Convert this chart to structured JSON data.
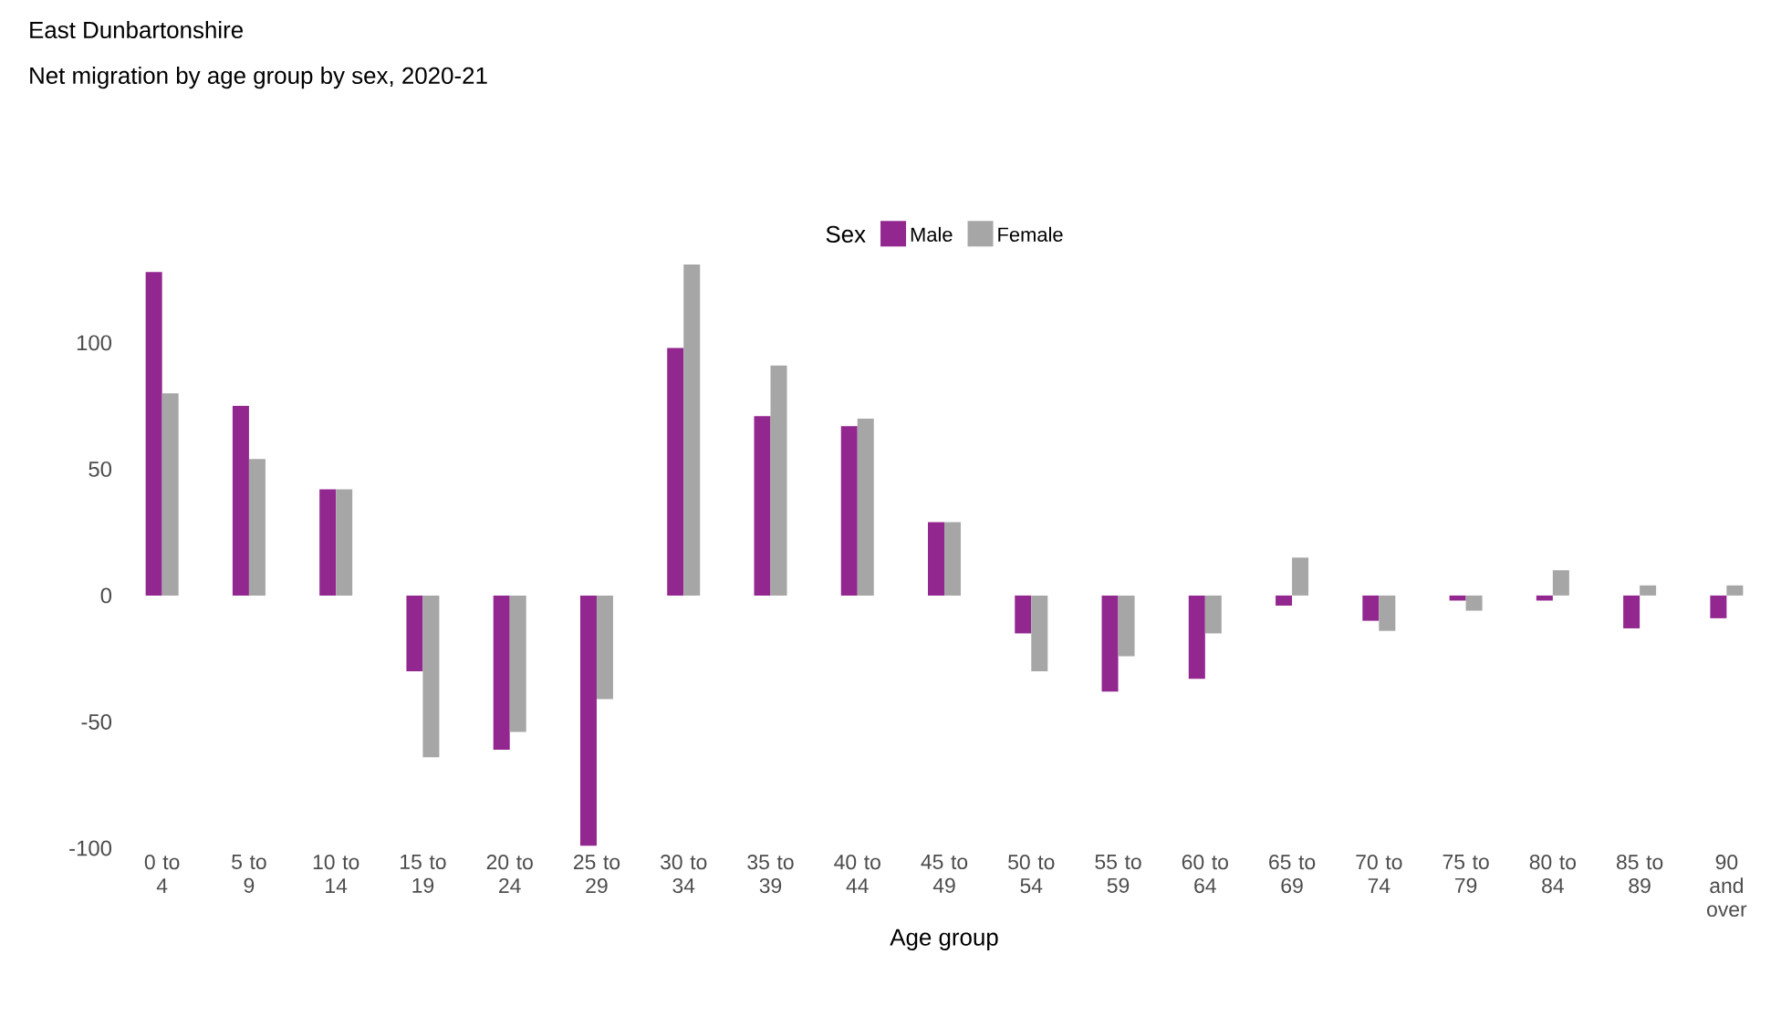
{
  "chart_data": {
    "type": "bar",
    "title": "East Dunbartonshire",
    "subtitle": "Net migration by age group by sex, 2020-21",
    "xlabel": "Age group",
    "legend_title": "Sex",
    "legend": "top",
    "categories": [
      "0 to 4",
      "5 to 9",
      "10 to 14",
      "15 to 19",
      "20 to 24",
      "25 to 29",
      "30 to 34",
      "35 to 39",
      "40 to 44",
      "45 to 49",
      "50 to 54",
      "55 to 59",
      "60 to 64",
      "65 to 69",
      "70 to 74",
      "75 to 79",
      "80 to 84",
      "85 to 89",
      "90 and over"
    ],
    "series": [
      {
        "name": "Male",
        "color": "#92278f",
        "values": [
          128,
          75,
          42,
          -30,
          -61,
          -99,
          98,
          71,
          67,
          29,
          -15,
          -38,
          -33,
          -4,
          -10,
          -2,
          -2,
          -13,
          -9
        ]
      },
      {
        "name": "Female",
        "color": "#a6a6a6",
        "values": [
          80,
          54,
          42,
          -64,
          -54,
          -41,
          131,
          91,
          70,
          29,
          -30,
          -24,
          -15,
          15,
          -14,
          -6,
          10,
          4,
          4
        ]
      }
    ],
    "ylim": [
      -100,
      131
    ],
    "yticks": [
      -100,
      -50,
      0,
      50,
      100
    ],
    "grid": false
  }
}
